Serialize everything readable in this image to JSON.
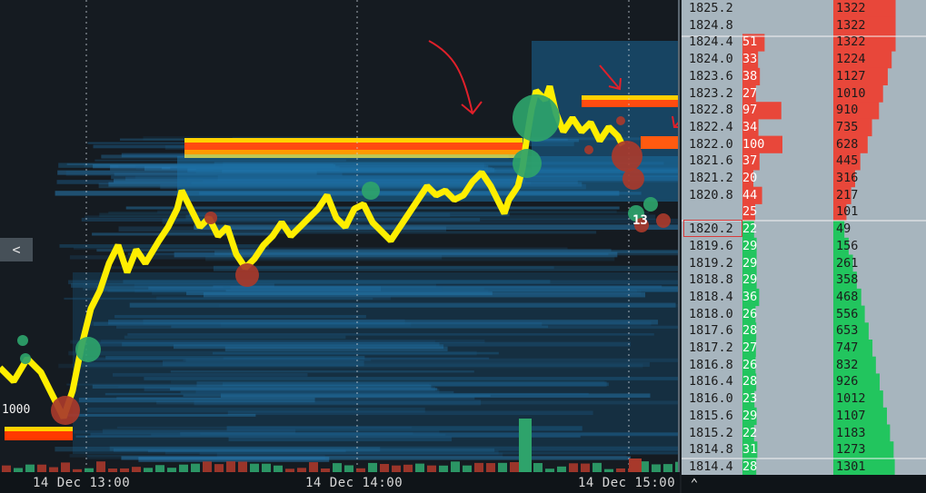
{
  "chart": {
    "x_labels": [
      "14 Dec 13:00",
      "14 Dec 14:00",
      "14 Dec 15:00"
    ],
    "price_tag": "1000",
    "volume_count": "13",
    "collapse_label": "<",
    "colors": {
      "background": "#151b21",
      "price_line": "#ffee00",
      "heatmap_liquidity": "#1e6d9e",
      "liquidity_wall": "#ff3a00",
      "buy_bubble": "#2ea36b",
      "sell_bubble": "#a8392b",
      "annotation_arrow": "#e0202a"
    }
  },
  "ladder": {
    "current_price": "1820.2",
    "rows": [
      {
        "price": "1825.2",
        "size": "",
        "cum": "1322",
        "side": "ask"
      },
      {
        "price": "1824.8",
        "size": "",
        "cum": "1322",
        "side": "ask"
      },
      {
        "price": "1824.4",
        "size": "51",
        "cum": "1322",
        "side": "ask"
      },
      {
        "price": "1824.0",
        "size": "33",
        "cum": "1224",
        "side": "ask"
      },
      {
        "price": "1823.6",
        "size": "38",
        "cum": "1127",
        "side": "ask"
      },
      {
        "price": "1823.2",
        "size": "27",
        "cum": "1010",
        "side": "ask"
      },
      {
        "price": "1822.8",
        "size": "97",
        "cum": "910",
        "side": "ask"
      },
      {
        "price": "1822.4",
        "size": "34",
        "cum": "735",
        "side": "ask"
      },
      {
        "price": "1822.0",
        "size": "100",
        "cum": "628",
        "side": "ask"
      },
      {
        "price": "1821.6",
        "size": "37",
        "cum": "445",
        "side": "ask"
      },
      {
        "price": "1821.2",
        "size": "20",
        "cum": "316",
        "side": "ask"
      },
      {
        "price": "1820.8",
        "size": "44",
        "cum": "217",
        "side": "ask"
      },
      {
        "price": "",
        "size": "25",
        "cum": "101",
        "side": "ask"
      },
      {
        "price": "1820.2",
        "size": "22",
        "cum": "49",
        "side": "bid"
      },
      {
        "price": "1819.6",
        "size": "29",
        "cum": "156",
        "side": "bid"
      },
      {
        "price": "1819.2",
        "size": "29",
        "cum": "261",
        "side": "bid"
      },
      {
        "price": "1818.8",
        "size": "29",
        "cum": "358",
        "side": "bid"
      },
      {
        "price": "1818.4",
        "size": "36",
        "cum": "468",
        "side": "bid"
      },
      {
        "price": "1818.0",
        "size": "26",
        "cum": "556",
        "side": "bid"
      },
      {
        "price": "1817.6",
        "size": "28",
        "cum": "653",
        "side": "bid"
      },
      {
        "price": "1817.2",
        "size": "27",
        "cum": "747",
        "side": "bid"
      },
      {
        "price": "1816.8",
        "size": "26",
        "cum": "832",
        "side": "bid"
      },
      {
        "price": "1816.4",
        "size": "28",
        "cum": "926",
        "side": "bid"
      },
      {
        "price": "1816.0",
        "size": "23",
        "cum": "1012",
        "side": "bid"
      },
      {
        "price": "1815.6",
        "size": "29",
        "cum": "1107",
        "side": "bid"
      },
      {
        "price": "1815.2",
        "size": "22",
        "cum": "1183",
        "side": "bid"
      },
      {
        "price": "1814.8",
        "size": "31",
        "cum": "1273",
        "side": "bid"
      },
      {
        "price": "1814.4",
        "size": "28",
        "cum": "1301",
        "side": "bid"
      }
    ]
  }
}
